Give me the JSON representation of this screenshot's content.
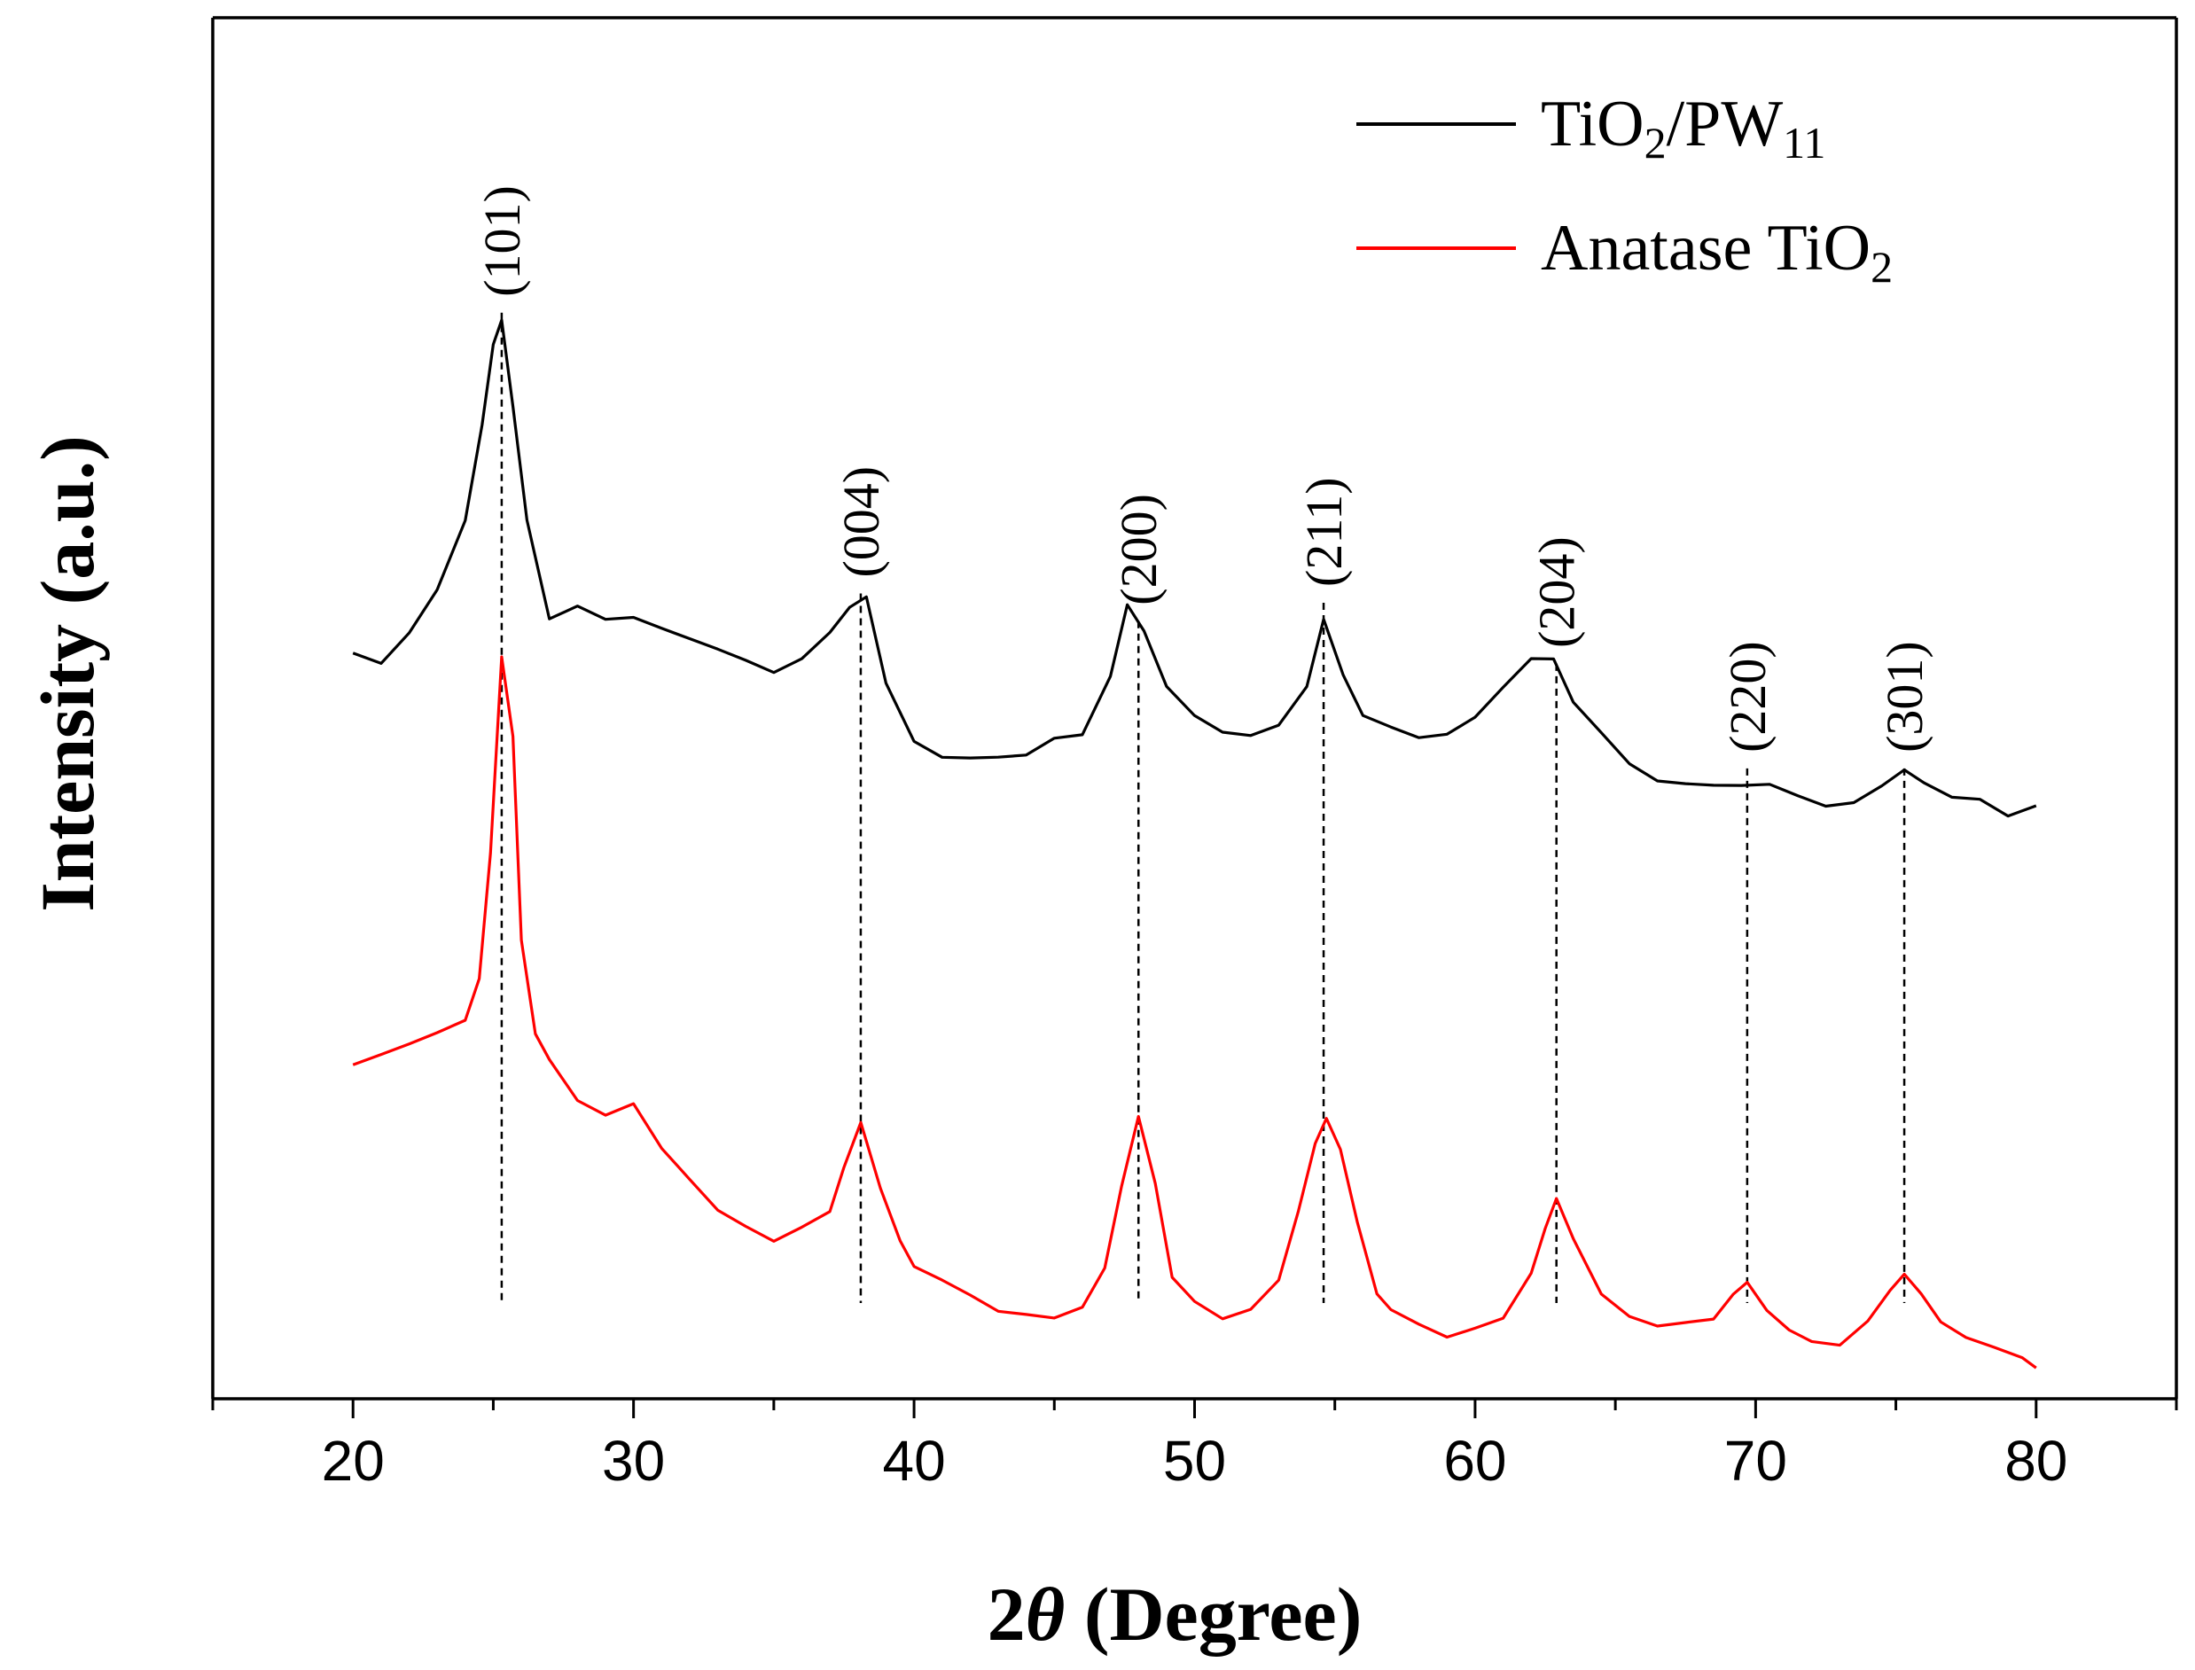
{
  "chart_data": {
    "type": "line",
    "xlabel_main": "2",
    "xlabel_theta": "θ",
    "xlabel_rest": " (Degree)",
    "ylabel": "Intensity (a.u.)",
    "xlim": [
      15,
      85
    ],
    "ylim": [
      0,
      100
    ],
    "xticks": [
      20,
      30,
      40,
      50,
      60,
      70,
      80
    ],
    "xtick_labels": [
      "20",
      "30",
      "40",
      "50",
      "60",
      "70",
      "80"
    ],
    "yticks": [],
    "legend_position": "top-right",
    "legend": [
      {
        "base": "TiO",
        "sub1": "2",
        "mid": "/PW",
        "sub2": "11",
        "color": "#000000"
      },
      {
        "base": "Anatase TiO",
        "sub1": "2",
        "mid": "",
        "sub2": "",
        "color": "#ff0000"
      }
    ],
    "peaks": [
      {
        "x": 25.3,
        "label": "(101)"
      },
      {
        "x": 38.1,
        "label": "(004)"
      },
      {
        "x": 48.0,
        "label": "(200)"
      },
      {
        "x": 54.6,
        "label": "(211)"
      },
      {
        "x": 62.9,
        "label": "(204)"
      },
      {
        "x": 69.7,
        "label": "(220)"
      },
      {
        "x": 75.3,
        "label": "(301)"
      }
    ],
    "series": [
      {
        "name": "TiO2/PW11",
        "color": "#000000",
        "x": [
          20,
          21,
          22,
          23,
          24,
          24.6,
          25.0,
          25.3,
          25.7,
          26.2,
          27,
          28,
          29,
          30,
          31,
          32,
          33,
          34,
          35,
          36,
          37,
          37.7,
          38.3,
          39,
          40,
          41,
          42,
          43,
          44,
          45,
          46,
          47,
          47.6,
          48.2,
          49,
          50,
          51,
          52,
          53,
          54,
          54.6,
          55.3,
          56,
          57,
          58,
          59,
          60,
          61,
          62,
          62.8,
          63.5,
          64.5,
          65.5,
          66.5,
          67.5,
          68.5,
          69.5,
          70.5,
          71.5,
          72.5,
          73.5,
          74.5,
          75.3,
          76,
          77,
          78,
          79,
          80
        ],
        "y": [
          54,
          53,
          55,
          58,
          63,
          70,
          76,
          78,
          72,
          64,
          57,
          58,
          57,
          57,
          56,
          55,
          54,
          53,
          52,
          53,
          55,
          57,
          58,
          52,
          48,
          47,
          47,
          47,
          47,
          48,
          48,
          52,
          57,
          55,
          51,
          49,
          48,
          48,
          49,
          52,
          57,
          53,
          50,
          49,
          48,
          48,
          49,
          51,
          53,
          53,
          50,
          48,
          46,
          45,
          45,
          45,
          45,
          45,
          44,
          43,
          43,
          44,
          45,
          44,
          43,
          43,
          42,
          43
        ]
      },
      {
        "name": "Anatase TiO2",
        "color": "#ff0000",
        "x": [
          20,
          21,
          22,
          23,
          24,
          24.5,
          24.9,
          25.3,
          25.7,
          26.0,
          26.5,
          27,
          28,
          29,
          30,
          31,
          32,
          33,
          34,
          35,
          36,
          37,
          37.5,
          38.1,
          38.8,
          39.5,
          40,
          41,
          42,
          43,
          44,
          45,
          46,
          46.8,
          47.4,
          48.0,
          48.6,
          49.2,
          50,
          51,
          52,
          53,
          53.7,
          54.3,
          54.7,
          55.2,
          55.8,
          56.5,
          57,
          58,
          59,
          60,
          61,
          62,
          62.5,
          62.9,
          63.5,
          64.5,
          65.5,
          66.5,
          67.5,
          68.5,
          69.2,
          69.7,
          70.4,
          71.2,
          72,
          73,
          74,
          74.8,
          75.3,
          75.9,
          76.6,
          77.5,
          78.5,
          79.5,
          80
        ],
        "y": [
          24,
          25,
          26,
          27,
          28,
          31,
          40,
          54,
          48,
          33,
          26,
          24,
          21,
          20,
          21,
          18,
          16,
          14,
          13,
          12,
          13,
          14,
          17,
          20,
          15,
          11,
          9,
          8,
          7,
          6,
          6,
          6,
          7,
          10,
          16,
          21,
          16,
          9,
          7,
          5.5,
          6,
          8,
          13,
          18,
          20,
          18,
          13,
          8,
          7,
          6,
          5,
          5.5,
          6,
          9,
          12,
          14,
          11,
          7,
          5.5,
          5,
          5.5,
          6,
          8,
          9,
          7,
          5.5,
          4.5,
          4,
          5.5,
          7.5,
          8.5,
          7,
          5,
          4,
          3.5,
          3,
          2.5
        ]
      }
    ]
  }
}
